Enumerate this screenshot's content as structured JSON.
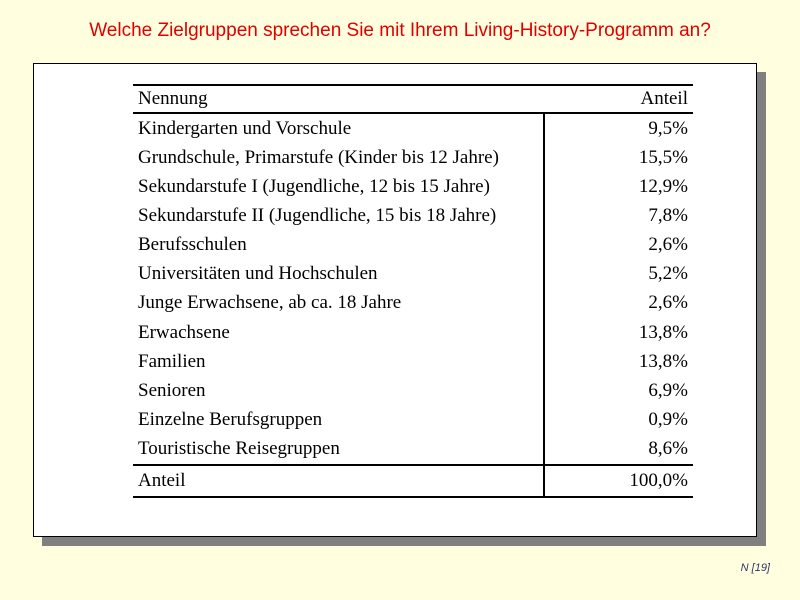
{
  "slide": {
    "title": "Welche Zielgruppen sprechen Sie mit Ihrem Living-History-Programm an?",
    "footer_note": "N [19]",
    "colors": {
      "background": "#FFFFE0",
      "title_text": "#E00000",
      "table_text": "#000000",
      "panel_background": "#FFFFFF",
      "panel_border": "#000000",
      "panel_shadow": "#808080",
      "footer_text": "#333366"
    }
  },
  "chart_data": {
    "type": "table",
    "title": "Welche Zielgruppen sprechen Sie mit Ihrem Living-History-Programm an?",
    "columns": [
      "Nennung",
      "Anteil"
    ],
    "rows": [
      {
        "label": "Kindergarten und Vorschule",
        "share": "9,5%",
        "value": 9.5
      },
      {
        "label": "Grundschule, Primarstufe (Kinder bis 12 Jahre)",
        "share": "15,5%",
        "value": 15.5
      },
      {
        "label": "Sekundarstufe I (Jugendliche, 12 bis 15 Jahre)",
        "share": "12,9%",
        "value": 12.9
      },
      {
        "label": "Sekundarstufe II (Jugendliche, 15 bis 18 Jahre)",
        "share": "7,8%",
        "value": 7.8
      },
      {
        "label": "Berufsschulen",
        "share": "2,6%",
        "value": 2.6
      },
      {
        "label": "Universitäten und Hochschulen",
        "share": "5,2%",
        "value": 5.2
      },
      {
        "label": "Junge Erwachsene, ab ca. 18 Jahre",
        "share": "2,6%",
        "value": 2.6
      },
      {
        "label": "Erwachsene",
        "share": "13,8%",
        "value": 13.8
      },
      {
        "label": "Familien",
        "share": "13,8%",
        "value": 13.8
      },
      {
        "label": "Senioren",
        "share": "6,9%",
        "value": 6.9
      },
      {
        "label": "Einzelne Berufsgruppen",
        "share": "0,9%",
        "value": 0.9
      },
      {
        "label": "Touristische Reisegruppen",
        "share": "8,6%",
        "value": 8.6
      }
    ],
    "total_row": {
      "label": "Anteil",
      "share": "100,0%",
      "value": 100.0
    }
  }
}
